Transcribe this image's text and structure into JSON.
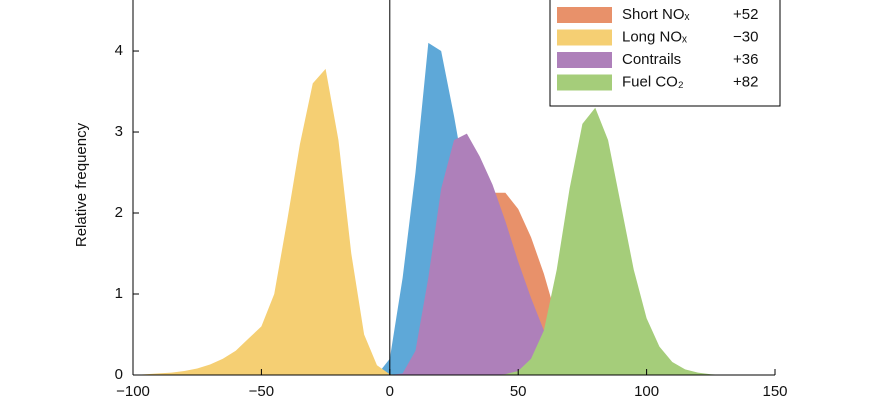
{
  "chart_data": {
    "type": "area",
    "ylabel": "Relative frequency",
    "x": [
      -100,
      -95,
      -90,
      -85,
      -80,
      -75,
      -70,
      -65,
      -60,
      -55,
      -50,
      -45,
      -40,
      -35,
      -30,
      -25,
      -20,
      -15,
      -10,
      -5,
      0,
      5,
      10,
      15,
      20,
      25,
      30,
      35,
      40,
      45,
      50,
      55,
      60,
      65,
      70,
      75,
      80,
      85,
      90,
      95,
      100,
      105,
      110,
      115,
      120,
      125,
      130,
      135,
      140,
      145,
      150
    ],
    "series": [
      {
        "color": "#5ea8d8",
        "values": [
          0,
          0,
          0,
          0,
          0,
          0,
          0,
          0,
          0,
          0,
          0,
          0,
          0,
          0,
          0,
          0,
          0,
          0,
          0,
          0,
          0.2,
          1.2,
          2.5,
          4.1,
          4.0,
          3.2,
          2.3,
          1.5,
          0.9,
          0.5,
          0.25,
          0.1,
          0.04,
          0.01,
          0,
          0,
          0,
          0,
          0,
          0,
          0,
          0,
          0,
          0,
          0,
          0,
          0,
          0,
          0,
          0,
          0
        ]
      },
      {
        "name": "Short NOₓ",
        "stat": "+52",
        "color": "#e8916a",
        "values": [
          0,
          0,
          0,
          0,
          0,
          0,
          0,
          0,
          0,
          0,
          0,
          0,
          0,
          0,
          0,
          0,
          0,
          0,
          0,
          0,
          0,
          0,
          0.02,
          0.1,
          0.4,
          0.9,
          1.5,
          2.0,
          2.25,
          2.25,
          2.05,
          1.7,
          1.25,
          0.7,
          0.3,
          0.12,
          0.05,
          0.02,
          0,
          0,
          0,
          0,
          0,
          0,
          0,
          0,
          0,
          0,
          0,
          0,
          0
        ]
      },
      {
        "name": "Long NOₓ",
        "stat": "−30",
        "color": "#f5cf73",
        "values": [
          0,
          0.01,
          0.02,
          0.03,
          0.05,
          0.08,
          0.13,
          0.2,
          0.3,
          0.45,
          0.6,
          1.0,
          1.9,
          2.85,
          3.6,
          3.78,
          2.9,
          1.5,
          0.5,
          0.12,
          0.01,
          0,
          0,
          0,
          0,
          0,
          0,
          0,
          0,
          0,
          0,
          0,
          0,
          0,
          0,
          0,
          0,
          0,
          0,
          0,
          0,
          0,
          0,
          0,
          0,
          0,
          0,
          0,
          0,
          0,
          0
        ]
      },
      {
        "name": "Contrails",
        "stat": "+36",
        "color": "#ae80ba",
        "values": [
          0,
          0,
          0,
          0,
          0,
          0,
          0,
          0,
          0,
          0,
          0,
          0,
          0,
          0,
          0,
          0,
          0,
          0,
          0,
          0,
          0,
          0.02,
          0.3,
          1.2,
          2.3,
          2.9,
          2.98,
          2.7,
          2.35,
          1.9,
          1.4,
          0.95,
          0.55,
          0.28,
          0.12,
          0.05,
          0.02,
          0,
          0,
          0,
          0,
          0,
          0,
          0,
          0,
          0,
          0,
          0,
          0,
          0,
          0
        ]
      },
      {
        "name": "Fuel CO₂",
        "stat": "+82",
        "color": "#a5cd7a",
        "values": [
          0,
          0,
          0,
          0,
          0,
          0,
          0,
          0,
          0,
          0,
          0,
          0,
          0,
          0,
          0,
          0,
          0,
          0,
          0,
          0,
          0,
          0,
          0,
          0,
          0,
          0,
          0,
          0,
          0,
          0.01,
          0.05,
          0.2,
          0.55,
          1.3,
          2.3,
          3.1,
          3.3,
          2.9,
          2.1,
          1.3,
          0.7,
          0.35,
          0.16,
          0.07,
          0.03,
          0.01,
          0,
          0,
          0,
          0,
          0
        ]
      }
    ],
    "xlim": [
      -100,
      150
    ],
    "xticks": [
      {
        "value": -100,
        "label": "−100"
      },
      {
        "value": -50,
        "label": "−50"
      },
      0,
      50,
      100,
      150
    ],
    "ylim": [
      0,
      4.63
    ],
    "yticks": [
      0,
      1,
      2,
      3,
      4
    ],
    "vline": 0,
    "vline_color": "#000000"
  }
}
